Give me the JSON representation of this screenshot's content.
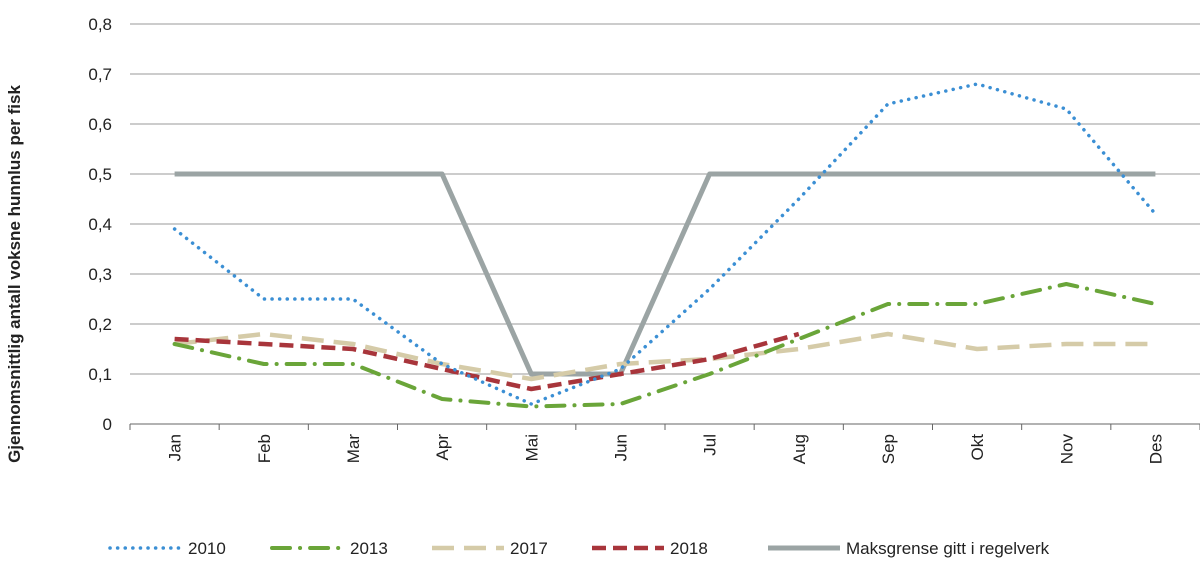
{
  "chart_data": {
    "type": "line",
    "title": "",
    "xlabel": "",
    "ylabel": "Gjennomsnittlig antall voksne hunnlus per fisk",
    "ylim": [
      0,
      0.8
    ],
    "yticks": [
      "0",
      "0,1",
      "0,2",
      "0,3",
      "0,4",
      "0,5",
      "0,6",
      "0,7",
      "0,8"
    ],
    "grid": true,
    "legend_position": "bottom",
    "categories": [
      "Jan",
      "Feb",
      "Mar",
      "Apr",
      "Mai",
      "Jun",
      "Jul",
      "Aug",
      "Sep",
      "Okt",
      "Nov",
      "Des"
    ],
    "series": [
      {
        "name": "2010",
        "color": "#3b8fd4",
        "style": "dotted",
        "values": [
          0.39,
          0.25,
          0.25,
          0.12,
          0.04,
          0.11,
          0.27,
          0.45,
          0.64,
          0.68,
          0.63,
          0.42
        ]
      },
      {
        "name": "2013",
        "color": "#6aa539",
        "style": "dashdot",
        "values": [
          0.16,
          0.12,
          0.12,
          0.05,
          0.035,
          0.04,
          0.1,
          0.17,
          0.24,
          0.24,
          0.28,
          0.24
        ]
      },
      {
        "name": "2017",
        "color": "#d5cba8",
        "style": "longdash",
        "values": [
          0.16,
          0.18,
          0.16,
          0.12,
          0.09,
          0.12,
          0.13,
          0.15,
          0.18,
          0.15,
          0.16,
          0.16
        ]
      },
      {
        "name": "2018",
        "color": "#a8353b",
        "style": "dashed",
        "values": [
          0.17,
          0.16,
          0.15,
          0.11,
          0.07,
          0.1,
          0.13,
          0.18,
          null,
          null,
          null,
          null
        ]
      },
      {
        "name": "Maksgrense gitt i regelverk",
        "color": "#9ba4a4",
        "style": "solid",
        "values": [
          0.5,
          0.5,
          0.5,
          0.5,
          0.1,
          0.1,
          0.5,
          0.5,
          0.5,
          0.5,
          0.5,
          0.5
        ]
      }
    ]
  }
}
